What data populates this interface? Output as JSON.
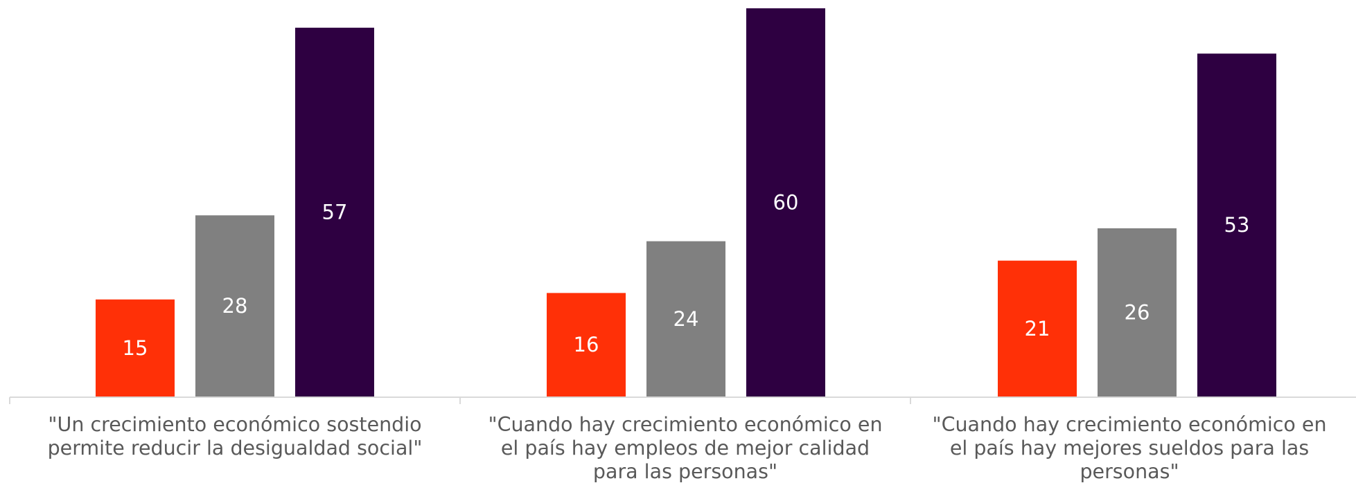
{
  "chart_data": {
    "type": "bar",
    "categories": [
      [
        "\"Un crecimiento económico sostendio",
        "permite reducir la desigualdad social\""
      ],
      [
        "\"Cuando hay crecimiento económico en",
        "el país hay empleos de mejor calidad",
        "para las personas\""
      ],
      [
        "\"Cuando hay crecimiento económico en",
        "el país hay mejores sueldos para las",
        "personas\""
      ]
    ],
    "series": [
      {
        "color": "#ff3007",
        "values": [
          15,
          16,
          21
        ]
      },
      {
        "color": "#808080",
        "values": [
          28,
          24,
          26
        ]
      },
      {
        "color": "#2e0041",
        "values": [
          57,
          60,
          53
        ]
      }
    ],
    "ylim": [
      0,
      60
    ],
    "grid": false,
    "legend": "none",
    "value_labels": [
      "15",
      "28",
      "57",
      "16",
      "24",
      "60",
      "21",
      "26",
      "53"
    ],
    "colors": {
      "axis": "#d9d9d9",
      "value_label": "#ffffff",
      "category_label": "#595959"
    }
  }
}
